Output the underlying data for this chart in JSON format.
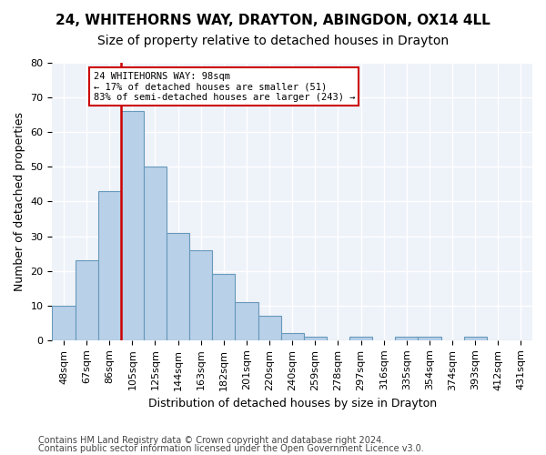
{
  "title1": "24, WHITEHORNS WAY, DRAYTON, ABINGDON, OX14 4LL",
  "title2": "Size of property relative to detached houses in Drayton",
  "xlabel": "Distribution of detached houses by size in Drayton",
  "ylabel": "Number of detached properties",
  "bar_values": [
    10,
    23,
    43,
    66,
    50,
    31,
    26,
    19,
    11,
    7,
    2,
    1,
    0,
    1,
    0,
    1,
    1,
    0,
    1,
    0,
    0
  ],
  "bar_labels": [
    "48sqm",
    "67sqm",
    "86sqm",
    "105sqm",
    "125sqm",
    "144sqm",
    "163sqm",
    "182sqm",
    "201sqm",
    "220sqm",
    "240sqm",
    "259sqm",
    "278sqm",
    "297sqm",
    "316sqm",
    "335sqm",
    "354sqm",
    "374sqm",
    "393sqm",
    "412sqm",
    "431sqm"
  ],
  "bar_color": "#b8d0e8",
  "bar_edge_color": "#6699bb",
  "vline_color": "#cc0000",
  "annotation_line1": "24 WHITEHORNS WAY: 98sqm",
  "annotation_line2": "← 17% of detached houses are smaller (51)",
  "annotation_line3": "83% of semi-detached houses are larger (243) →",
  "annotation_box_edge_color": "#cc0000",
  "ylim": [
    0,
    80
  ],
  "yticks": [
    0,
    10,
    20,
    30,
    40,
    50,
    60,
    70,
    80
  ],
  "footer1": "Contains HM Land Registry data © Crown copyright and database right 2024.",
  "footer2": "Contains public sector information licensed under the Open Government Licence v3.0.",
  "bg_color": "#eef2f9",
  "grid_color": "#ffffff",
  "title1_fontsize": 11,
  "title2_fontsize": 10,
  "xlabel_fontsize": 9,
  "ylabel_fontsize": 9,
  "tick_fontsize": 8,
  "footer_fontsize": 7
}
